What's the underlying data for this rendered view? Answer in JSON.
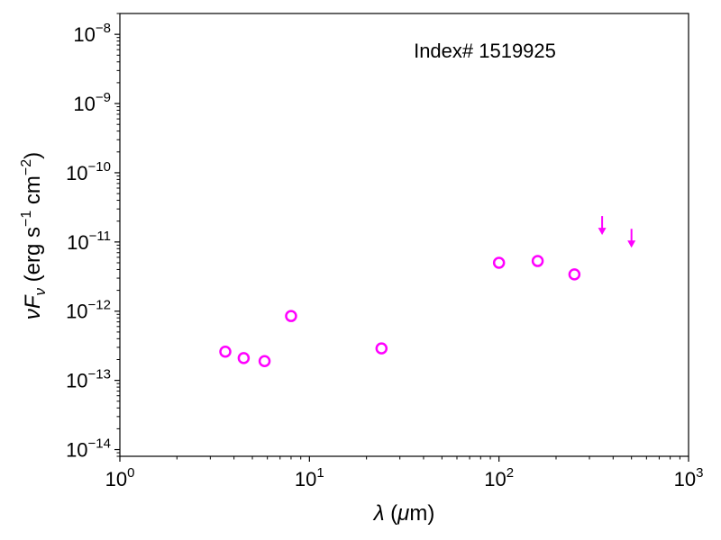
{
  "chart_data": {
    "type": "scatter",
    "annotation": "Index# 1519925",
    "xlabel": "λ (μm)",
    "ylabel": "νF_ν (erg s^-1 cm^-2)",
    "xscale": "log",
    "yscale": "log",
    "xlim": [
      1,
      1000
    ],
    "ylim": [
      8e-15,
      2e-08
    ],
    "x_ticks": [
      {
        "base": "10",
        "exp": "0",
        "value": 1
      },
      {
        "base": "10",
        "exp": "1",
        "value": 10
      },
      {
        "base": "10",
        "exp": "2",
        "value": 100
      },
      {
        "base": "10",
        "exp": "3",
        "value": 1000
      }
    ],
    "y_ticks": [
      {
        "base": "10",
        "exp": "−14",
        "value": 1e-14
      },
      {
        "base": "10",
        "exp": "−13",
        "value": 1e-13
      },
      {
        "base": "10",
        "exp": "−12",
        "value": 1e-12
      },
      {
        "base": "10",
        "exp": "−11",
        "value": 1e-11
      },
      {
        "base": "10",
        "exp": "−10",
        "value": 1e-10
      },
      {
        "base": "10",
        "exp": "−9",
        "value": 1e-09
      },
      {
        "base": "10",
        "exp": "−8",
        "value": 1e-08
      }
    ],
    "grid": false,
    "color": "#ff00ff",
    "detections": [
      {
        "x": 3.6,
        "y": 2.6e-13
      },
      {
        "x": 4.5,
        "y": 2.1e-13
      },
      {
        "x": 5.8,
        "y": 1.9e-13
      },
      {
        "x": 8.0,
        "y": 8.5e-13
      },
      {
        "x": 24,
        "y": 2.9e-13
      },
      {
        "x": 100,
        "y": 5e-12
      },
      {
        "x": 160,
        "y": 5.3e-12
      },
      {
        "x": 250,
        "y": 3.4e-12
      }
    ],
    "upper_limits": [
      {
        "x": 350,
        "y": 1.3e-11
      },
      {
        "x": 500,
        "y": 8.5e-12
      }
    ]
  }
}
